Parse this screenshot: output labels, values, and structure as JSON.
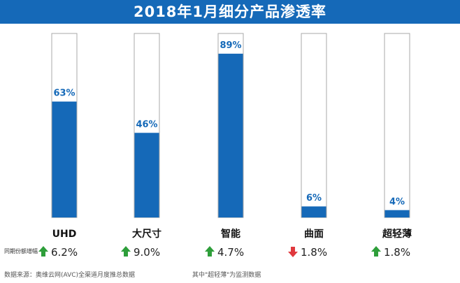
{
  "title": "2018年1月细分产品渗透率",
  "growth_caption": "同期份额增幅",
  "footer": {
    "source": "数据来源：奥维云网(AVC)全渠道月度推总数据",
    "note": "其中\"超轻薄\"为监测数据"
  },
  "colors": {
    "bar": "#1569b8",
    "outline": "#a9a9a9",
    "up": "#2e9e3a",
    "down": "#e0393e"
  },
  "chart_data": {
    "type": "bar",
    "title": "2018年1月细分产品渗透率",
    "categories": [
      "UHD",
      "大尺寸",
      "智能",
      "曲面",
      "超轻薄"
    ],
    "values": [
      63,
      46,
      89,
      6,
      4
    ],
    "value_labels": [
      "63%",
      "46%",
      "89%",
      "6%",
      "4%"
    ],
    "ylim": [
      0,
      100
    ],
    "unit": "%",
    "growth": [
      {
        "direction": "up",
        "label": "6.2%"
      },
      {
        "direction": "up",
        "label": "9.0%"
      },
      {
        "direction": "up",
        "label": "4.7%"
      },
      {
        "direction": "down",
        "label": "1.8%"
      },
      {
        "direction": "up",
        "label": "1.8%"
      }
    ]
  }
}
